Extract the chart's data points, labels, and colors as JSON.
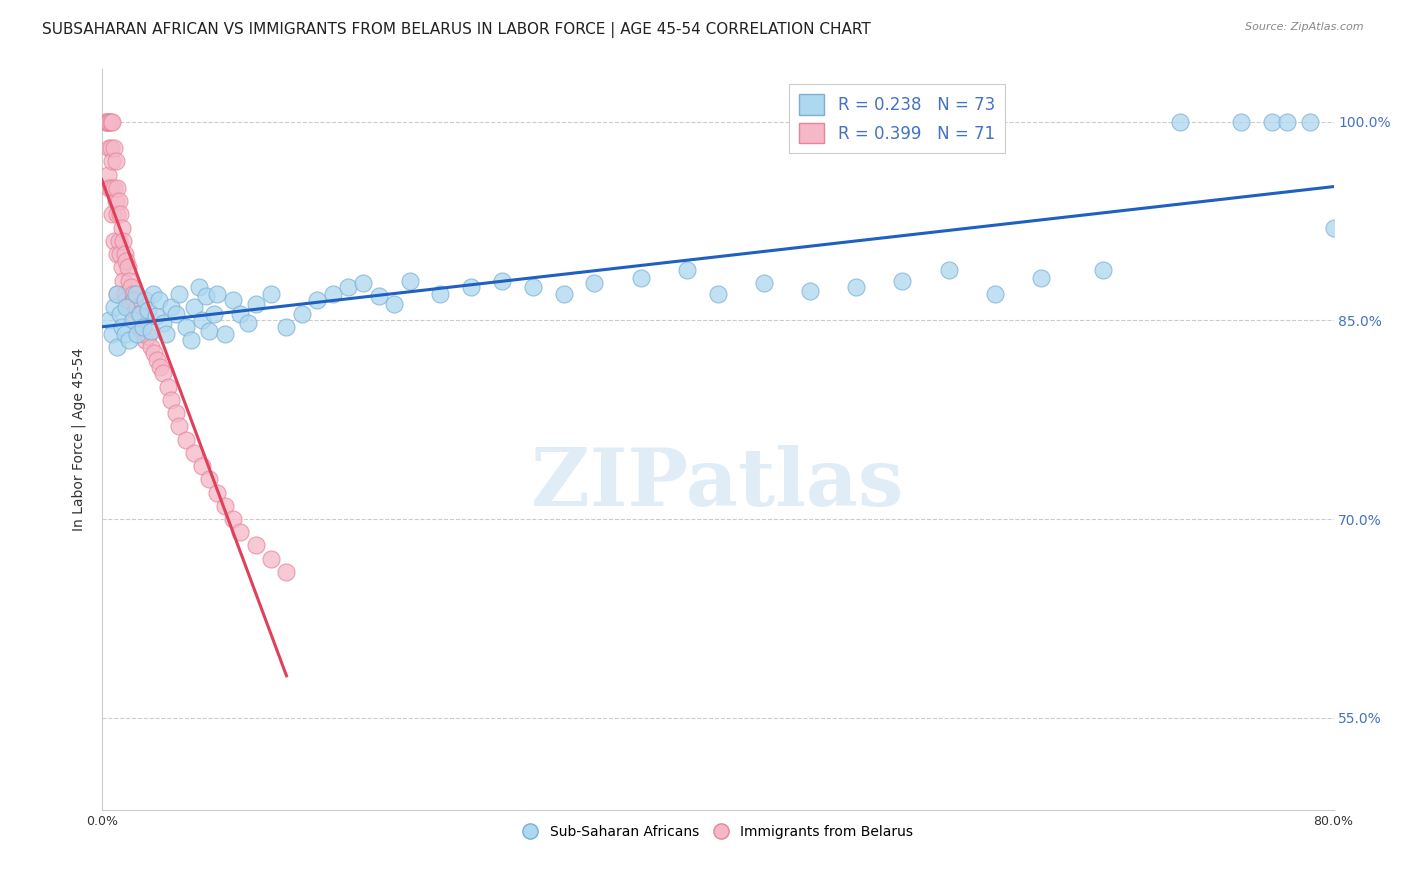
{
  "title": "SUBSAHARAN AFRICAN VS IMMIGRANTS FROM BELARUS IN LABOR FORCE | AGE 45-54 CORRELATION CHART",
  "source": "Source: ZipAtlas.com",
  "ylabel": "In Labor Force | Age 45-54",
  "xlim": [
    0.0,
    0.8
  ],
  "ylim": [
    0.48,
    1.04
  ],
  "xticks": [
    0.0,
    0.1,
    0.2,
    0.3,
    0.4,
    0.5,
    0.6,
    0.7,
    0.8
  ],
  "xticklabels": [
    "0.0%",
    "",
    "",
    "",
    "",
    "",
    "",
    "",
    "80.0%"
  ],
  "yticks": [
    0.55,
    0.7,
    0.85,
    1.0
  ],
  "yticklabels": [
    "55.0%",
    "70.0%",
    "85.0%",
    "100.0%"
  ],
  "blue_R": 0.238,
  "blue_N": 73,
  "pink_R": 0.399,
  "pink_N": 71,
  "blue_color": "#ADD8F0",
  "blue_edge": "#7BAFD4",
  "pink_color": "#F4B8C8",
  "pink_edge": "#E8849A",
  "blue_line_color": "#2060C0",
  "pink_line_color": "#E0405A",
  "watermark": "ZIPatlas",
  "blue_scatter_x": [
    0.005,
    0.007,
    0.008,
    0.01,
    0.01,
    0.012,
    0.013,
    0.015,
    0.016,
    0.018,
    0.02,
    0.022,
    0.023,
    0.025,
    0.027,
    0.028,
    0.03,
    0.032,
    0.033,
    0.035,
    0.037,
    0.04,
    0.042,
    0.045,
    0.048,
    0.05,
    0.055,
    0.058,
    0.06,
    0.063,
    0.065,
    0.068,
    0.07,
    0.073,
    0.075,
    0.08,
    0.085,
    0.09,
    0.095,
    0.1,
    0.11,
    0.12,
    0.13,
    0.14,
    0.15,
    0.16,
    0.17,
    0.18,
    0.19,
    0.2,
    0.22,
    0.24,
    0.26,
    0.28,
    0.3,
    0.32,
    0.35,
    0.38,
    0.4,
    0.43,
    0.46,
    0.49,
    0.52,
    0.55,
    0.58,
    0.61,
    0.65,
    0.7,
    0.74,
    0.76,
    0.77,
    0.785,
    0.8
  ],
  "blue_scatter_y": [
    0.85,
    0.84,
    0.86,
    0.83,
    0.87,
    0.855,
    0.845,
    0.84,
    0.86,
    0.835,
    0.85,
    0.87,
    0.84,
    0.855,
    0.845,
    0.865,
    0.858,
    0.842,
    0.87,
    0.853,
    0.865,
    0.848,
    0.84,
    0.86,
    0.855,
    0.87,
    0.845,
    0.835,
    0.86,
    0.875,
    0.85,
    0.868,
    0.842,
    0.855,
    0.87,
    0.84,
    0.865,
    0.855,
    0.848,
    0.862,
    0.87,
    0.845,
    0.855,
    0.865,
    0.87,
    0.875,
    0.878,
    0.868,
    0.862,
    0.88,
    0.87,
    0.875,
    0.88,
    0.875,
    0.87,
    0.878,
    0.882,
    0.888,
    0.87,
    0.878,
    0.872,
    0.875,
    0.88,
    0.888,
    0.87,
    0.882,
    0.888,
    1.0,
    1.0,
    1.0,
    1.0,
    1.0,
    0.92
  ],
  "pink_scatter_x": [
    0.003,
    0.003,
    0.004,
    0.004,
    0.004,
    0.005,
    0.005,
    0.005,
    0.005,
    0.006,
    0.006,
    0.006,
    0.007,
    0.007,
    0.007,
    0.008,
    0.008,
    0.008,
    0.009,
    0.009,
    0.01,
    0.01,
    0.01,
    0.01,
    0.011,
    0.011,
    0.012,
    0.012,
    0.013,
    0.013,
    0.014,
    0.014,
    0.015,
    0.015,
    0.016,
    0.016,
    0.017,
    0.018,
    0.018,
    0.019,
    0.02,
    0.02,
    0.021,
    0.022,
    0.023,
    0.024,
    0.025,
    0.026,
    0.027,
    0.028,
    0.03,
    0.032,
    0.034,
    0.036,
    0.038,
    0.04,
    0.043,
    0.045,
    0.048,
    0.05,
    0.055,
    0.06,
    0.065,
    0.07,
    0.075,
    0.08,
    0.085,
    0.09,
    0.1,
    0.11,
    0.12
  ],
  "pink_scatter_y": [
    1.0,
    1.0,
    1.0,
    1.0,
    0.96,
    1.0,
    1.0,
    0.98,
    0.95,
    1.0,
    0.98,
    0.95,
    1.0,
    0.97,
    0.93,
    0.98,
    0.95,
    0.91,
    0.97,
    0.94,
    0.95,
    0.93,
    0.9,
    0.87,
    0.94,
    0.91,
    0.93,
    0.9,
    0.92,
    0.89,
    0.91,
    0.88,
    0.9,
    0.87,
    0.895,
    0.865,
    0.89,
    0.88,
    0.86,
    0.875,
    0.87,
    0.855,
    0.865,
    0.858,
    0.86,
    0.855,
    0.845,
    0.84,
    0.845,
    0.835,
    0.838,
    0.83,
    0.825,
    0.82,
    0.815,
    0.81,
    0.8,
    0.79,
    0.78,
    0.77,
    0.76,
    0.75,
    0.74,
    0.73,
    0.72,
    0.71,
    0.7,
    0.69,
    0.68,
    0.67,
    0.66
  ],
  "grid_color": "#cccccc",
  "background_color": "#ffffff",
  "title_fontsize": 11,
  "axis_label_fontsize": 10,
  "tick_fontsize": 9,
  "legend_fontsize": 12
}
